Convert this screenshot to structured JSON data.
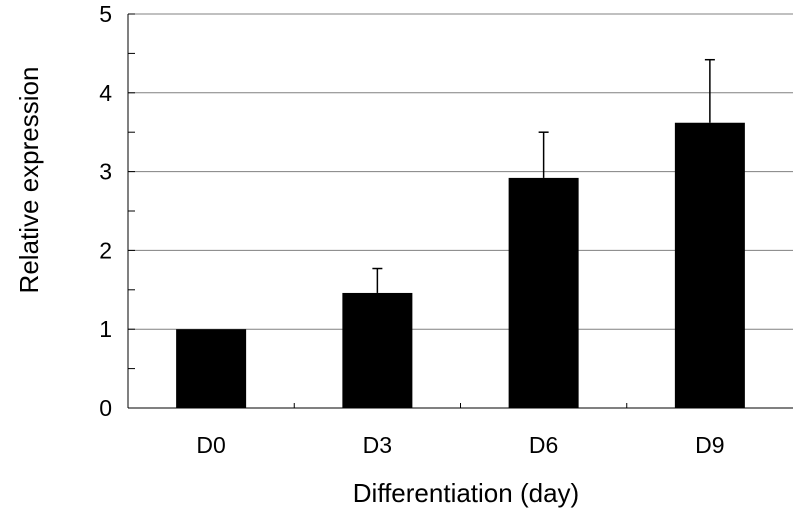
{
  "chart_data": {
    "type": "bar",
    "title": "",
    "xlabel": "Differentiation (day)",
    "ylabel": "Relative expression",
    "categories": [
      "D0",
      "D3",
      "D6",
      "D9"
    ],
    "values": [
      1.0,
      1.46,
      2.92,
      3.62
    ],
    "error_upper": [
      0.0,
      0.31,
      0.58,
      0.8
    ],
    "ylim": [
      0,
      5
    ],
    "yticks": [
      "0",
      "1",
      "2",
      "3",
      "4",
      "5"
    ],
    "grid": true,
    "bar_color": "#000000",
    "gridline_color": "#808080"
  }
}
